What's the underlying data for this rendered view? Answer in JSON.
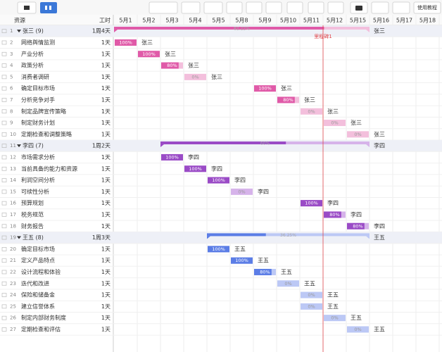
{
  "toolbar": {
    "help": "使用教程"
  },
  "header": {
    "resource": "资源",
    "hours": "工时"
  },
  "dates": [
    "5月1",
    "5月2",
    "5月3",
    "5月4",
    "5月5",
    "5月8",
    "5月9",
    "5月10",
    "5月11",
    "5月12",
    "5月15",
    "5月16",
    "5月17",
    "5月18"
  ],
  "milestone": {
    "label": "里程碑1",
    "date": "5月12",
    "color": "#e0474c"
  },
  "rows": [
    {
      "id": 1,
      "group": true,
      "name": "张三 (9)",
      "duration": "1周4天",
      "owner": "张三",
      "start": "5月1",
      "end": "5月15",
      "progress": 82.22,
      "progress_label": "82.22%",
      "color": "#e05aa8",
      "light": "#f3bfdc"
    },
    {
      "id": 2,
      "name": "网络舆情监测",
      "duration": "1天",
      "owner": "张三",
      "start": "5月1",
      "end": "5月1",
      "progress": 100,
      "progress_label": "100%",
      "color": "#e05aa8",
      "light": "#f3bfdc"
    },
    {
      "id": 3,
      "name": "产业分析",
      "duration": "1天",
      "owner": "张三",
      "start": "5月2",
      "end": "5月2",
      "progress": 100,
      "progress_label": "100%",
      "color": "#e05aa8",
      "light": "#f3bfdc"
    },
    {
      "id": 4,
      "name": "政策分析",
      "duration": "1天",
      "owner": "张三",
      "start": "5月3",
      "end": "5月3",
      "progress": 80,
      "progress_label": "80%",
      "color": "#e05aa8",
      "light": "#f3bfdc"
    },
    {
      "id": 5,
      "name": "消费者调研",
      "duration": "1天",
      "owner": "张三",
      "start": "5月4",
      "end": "5月4",
      "progress": 0,
      "progress_label": "0%",
      "color": "#e05aa8",
      "light": "#f3bfdc"
    },
    {
      "id": 6,
      "name": "确定目标市场",
      "duration": "1天",
      "owner": "张三",
      "start": "5月9",
      "end": "5月9",
      "progress": 100,
      "progress_label": "100%",
      "color": "#e05aa8",
      "light": "#f3bfdc"
    },
    {
      "id": 7,
      "name": "分析竞争对手",
      "duration": "1天",
      "owner": "张三",
      "start": "5月10",
      "end": "5月10",
      "progress": 80,
      "progress_label": "80%",
      "color": "#e05aa8",
      "light": "#f3bfdc"
    },
    {
      "id": 8,
      "name": "制定品牌宣传策略",
      "duration": "1天",
      "owner": "张三",
      "start": "5月11",
      "end": "5月11",
      "progress": 0,
      "progress_label": "0%",
      "color": "#e05aa8",
      "light": "#f3bfdc"
    },
    {
      "id": 9,
      "name": "制定财务计划",
      "duration": "1天",
      "owner": "张三",
      "start": "5月12",
      "end": "5月12",
      "progress": 0,
      "progress_label": "0%",
      "color": "#e05aa8",
      "light": "#f3bfdc"
    },
    {
      "id": 10,
      "name": "定期检查和调整策略",
      "duration": "1天",
      "owner": "张三",
      "start": "5月15",
      "end": "5月15",
      "progress": 0,
      "progress_label": "0%",
      "color": "#e05aa8",
      "light": "#f3bfdc"
    },
    {
      "id": 11,
      "group": true,
      "name": "李四 (7)",
      "duration": "1周2天",
      "owner": "李四",
      "start": "5月3",
      "end": "5月15",
      "progress": 60,
      "progress_label": "60%",
      "color": "#9a4bc6",
      "light": "#d6b3ea"
    },
    {
      "id": 12,
      "name": "市场需求分析",
      "duration": "1天",
      "owner": "李四",
      "start": "5月3",
      "end": "5月3",
      "progress": 100,
      "progress_label": "100%",
      "color": "#9a4bc6",
      "light": "#d6b3ea"
    },
    {
      "id": 13,
      "name": "当前具备的能力和资源",
      "duration": "1天",
      "owner": "李四",
      "start": "5月4",
      "end": "5月4",
      "progress": 100,
      "progress_label": "100%",
      "color": "#9a4bc6",
      "light": "#d6b3ea"
    },
    {
      "id": 14,
      "name": "利润空间分析",
      "duration": "1天",
      "owner": "李四",
      "start": "5月5",
      "end": "5月5",
      "progress": 100,
      "progress_label": "100%",
      "color": "#9a4bc6",
      "light": "#d6b3ea"
    },
    {
      "id": 15,
      "name": "可续性分析",
      "duration": "1天",
      "owner": "李四",
      "start": "5月8",
      "end": "5月8",
      "progress": 0,
      "progress_label": "0%",
      "color": "#9a4bc6",
      "light": "#d6b3ea"
    },
    {
      "id": 16,
      "name": "预算规划",
      "duration": "1天",
      "owner": "李四",
      "start": "5月11",
      "end": "5月11",
      "progress": 100,
      "progress_label": "100%",
      "color": "#9a4bc6",
      "light": "#d6b3ea"
    },
    {
      "id": 17,
      "name": "税务规范",
      "duration": "1天",
      "owner": "李四",
      "start": "5月12",
      "end": "5月12",
      "progress": 80,
      "progress_label": "80%",
      "color": "#9a4bc6",
      "light": "#d6b3ea"
    },
    {
      "id": 18,
      "name": "财务报告",
      "duration": "1天",
      "owner": "李四",
      "start": "5月15",
      "end": "5月15",
      "progress": 80,
      "progress_label": "80%",
      "color": "#9a4bc6",
      "light": "#d6b3ea"
    },
    {
      "id": 19,
      "group": true,
      "name": "王五 (8)",
      "duration": "1周3天",
      "owner": "王五",
      "start": "5月5",
      "end": "5月15",
      "progress": 36.25,
      "progress_label": "36.25%",
      "color": "#5b7de6",
      "light": "#bcc8f5"
    },
    {
      "id": 20,
      "name": "确定目标市场",
      "duration": "1天",
      "owner": "王五",
      "start": "5月5",
      "end": "5月5",
      "progress": 100,
      "progress_label": "100%",
      "color": "#5b7de6",
      "light": "#bcc8f5"
    },
    {
      "id": 21,
      "name": "定义产品特点",
      "duration": "1天",
      "owner": "王五",
      "start": "5月8",
      "end": "5月8",
      "progress": 100,
      "progress_label": "100%",
      "color": "#5b7de6",
      "light": "#bcc8f5"
    },
    {
      "id": 22,
      "name": "设计流程和体验",
      "duration": "1天",
      "owner": "王五",
      "start": "5月9",
      "end": "5月9",
      "progress": 80,
      "progress_label": "80%",
      "color": "#5b7de6",
      "light": "#bcc8f5"
    },
    {
      "id": 23,
      "name": "迭代和改进",
      "duration": "1天",
      "owner": "王五",
      "start": "5月10",
      "end": "5月10",
      "progress": 0,
      "progress_label": "0%",
      "color": "#5b7de6",
      "light": "#bcc8f5"
    },
    {
      "id": 24,
      "name": "保险和储备金",
      "duration": "1天",
      "owner": "王五",
      "start": "5月11",
      "end": "5月11",
      "progress": 0,
      "progress_label": "0%",
      "color": "#5b7de6",
      "light": "#bcc8f5"
    },
    {
      "id": 25,
      "name": "建立信誉体系",
      "duration": "1天",
      "owner": "王五",
      "start": "5月11",
      "end": "5月11",
      "progress": 0,
      "progress_label": "0%",
      "color": "#5b7de6",
      "light": "#bcc8f5"
    },
    {
      "id": 26,
      "name": "制定内部财务制度",
      "duration": "1天",
      "owner": "王五",
      "start": "5月12",
      "end": "5月12",
      "progress": 0,
      "progress_label": "0%",
      "color": "#5b7de6",
      "light": "#bcc8f5"
    },
    {
      "id": 27,
      "name": "定期检查和评估",
      "duration": "1天",
      "owner": "王五",
      "start": "5月15",
      "end": "5月15",
      "progress": 0,
      "progress_label": "0%",
      "color": "#5b7de6",
      "light": "#bcc8f5"
    }
  ]
}
